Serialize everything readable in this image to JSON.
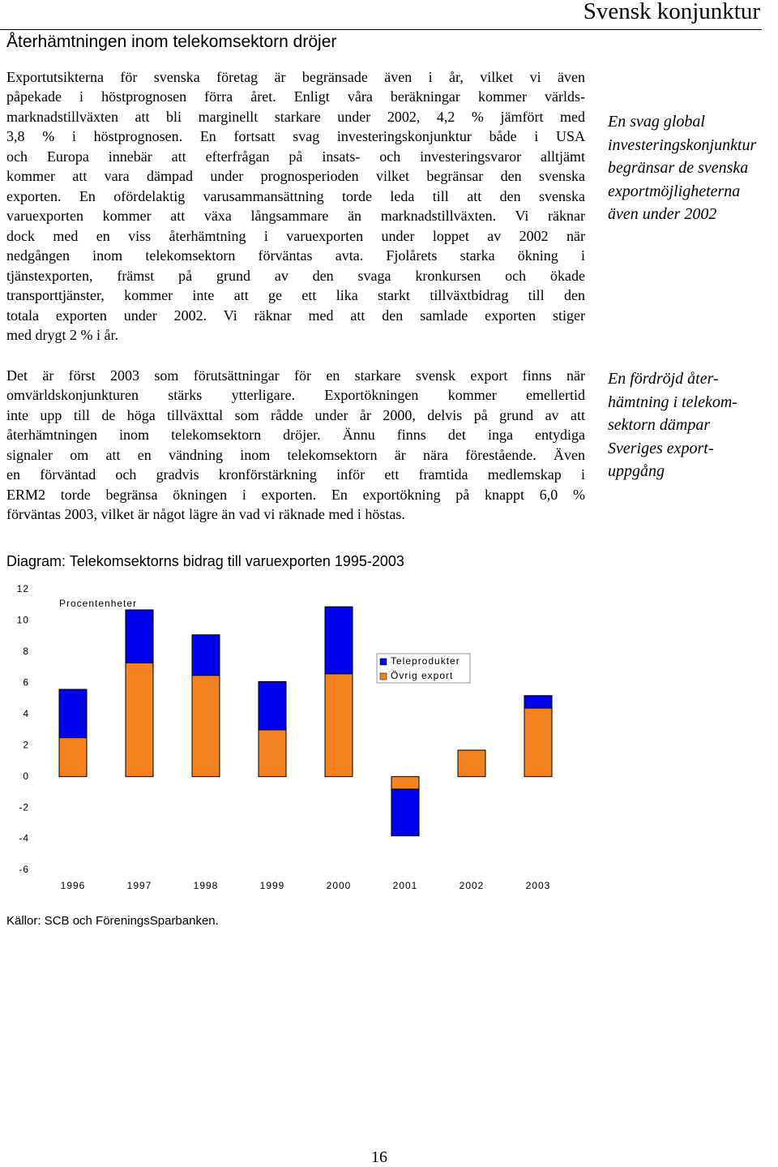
{
  "header": {
    "running_title": "Svensk konjunktur",
    "title": "Återhämtningen inom telekomsektorn dröjer"
  },
  "paragraphs": [
    [
      "Exportutsikterna för svenska företag är begränsade även i år, vilket vi även",
      "påpekade i höstprognosen förra året. Enligt våra beräkningar kommer världs-",
      "marknadstillväxten att bli marginellt starkare under 2002, 4,2 % jämfört med",
      "3,8 % i höstprognosen. En fortsatt svag investeringskonjunktur både i USA",
      "och Europa innebär att efterfrågan på insats- och investeringsvaror alltjämt",
      "kommer att vara dämpad under prognosperioden vilket begränsar den svenska",
      "exporten. En ofördelaktig varusammansättning torde leda till att den svenska",
      "varuexporten kommer att växa långsammare än marknadstillväxten. Vi räknar",
      "dock med en viss återhämtning i varuexporten under loppet av 2002 när",
      "nedgången inom telekomsektorn förväntas avta. Fjolårets starka ökning i",
      "tjänstexporten, främst på grund av den svaga kronkursen och ökade",
      "transporttjänster, kommer inte att ge ett lika starkt tillväxtbidrag till den",
      "totala exporten under 2002. Vi räknar med att den samlade exporten stiger",
      "med drygt 2  % i år."
    ],
    [
      "Det är först 2003 som förutsättningar för en starkare svensk export finns när",
      "omvärldskonjunkturen stärks ytterligare. Exportökningen kommer emellertid",
      "inte upp till de höga tillväxttal som rådde under år 2000, delvis på grund av att",
      "återhämtningen inom telekomsektorn dröjer. Ännu finns det inga entydiga",
      "signaler om att en vändning inom telekomsektorn är nära förestående. Även",
      "en förväntad och gradvis kronförstärkning inför ett framtida medlemskap i",
      "ERM2 torde begränsa ökningen i exporten. En exportökning på knappt 6,0 %",
      "förväntas 2003, vilket är något lägre än vad vi räknade med i höstas."
    ]
  ],
  "sidenotes": [
    [
      "En svag global",
      "investeringskonjunktur",
      "begränsar de svenska",
      "exportmöjligheterna",
      "även under 2002"
    ],
    [
      "En fördröjd åter-",
      "hämtning i telekom-",
      "sektorn dämpar",
      "Sveriges export-",
      "uppgång"
    ]
  ],
  "chart_data": {
    "type": "bar",
    "stacked": true,
    "title": "Diagram: Telekomsektorns bidrag till varuexporten 1995-2003",
    "y_label": "Procentenheter",
    "categories": [
      "1996",
      "1997",
      "1998",
      "1999",
      "2000",
      "2001",
      "2002",
      "2003"
    ],
    "series": [
      {
        "name": "Teleprodukter",
        "color": "#0000ee",
        "values": [
          3.1,
          3.4,
          2.6,
          3.1,
          4.3,
          -3.0,
          0,
          0.8
        ]
      },
      {
        "name": "Övrig export",
        "color": "#f58220",
        "values": [
          2.5,
          7.3,
          6.5,
          3.0,
          6.6,
          -0.8,
          1.7,
          4.4
        ]
      }
    ],
    "ylim": [
      -6,
      12
    ],
    "yticks": [
      -6,
      -4,
      -2,
      0,
      2,
      4,
      6,
      8,
      10,
      12
    ],
    "source": "Källor: SCB och FöreningsSparbanken."
  },
  "page_number": "16"
}
